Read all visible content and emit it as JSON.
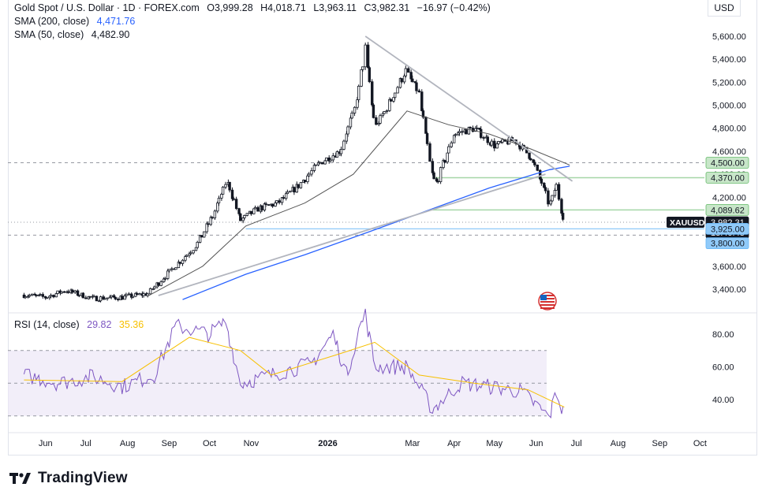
{
  "header": {
    "symbol_name": "Gold Spot / U.S. Dollar · 1D · FOREX.com",
    "open": "O3,999.28",
    "high": "H4,018.71",
    "low": "L3,963.11",
    "close": "C3,982.31",
    "change": "−16.97 (−0.42%)",
    "sma200_label": "SMA (200, close)",
    "sma200_value": "4,471.76",
    "sma50_label": "SMA (50, close)",
    "sma50_value": "4,482.90",
    "rsi_label": "RSI (14, close)",
    "rsi_value": "29.82",
    "rsi_ma_value": "35.36",
    "currency": "USD"
  },
  "brand": {
    "name": "TradingView",
    "icon": "tradingview-logo-icon"
  },
  "flag_icon": "us-flag-icon",
  "colors": {
    "up": "#131722",
    "down": "#131722",
    "sma200": "#2962ff",
    "sma50": "#131722",
    "rsi": "#7e57c2",
    "rsi_ma": "#f7c000",
    "trendline": "#b2b5be",
    "green_zone": "#43a047",
    "blue_zone": "#2962ff"
  },
  "chart_data": [
    {
      "type": "candlestick",
      "title": "Gold Spot / U.S. Dollar · 1D · FOREX.com",
      "x_ticks": [
        "Jun",
        "Jul",
        "Aug",
        "Sep",
        "Oct",
        "Nov",
        "2026",
        "Mar",
        "Apr",
        "May",
        "Jun",
        "Jul",
        "Aug",
        "Sep",
        "Oct"
      ],
      "y_ticks": [
        3400,
        3600,
        3800,
        4000,
        4200,
        4400,
        4600,
        4800,
        5000,
        5200,
        5400,
        5600
      ],
      "y_tick_labels": [
        "3,400.00",
        "3,600.00",
        "3,800.00",
        "4,000.00",
        "4,200.00",
        "4,400.00",
        "4,600.00",
        "4,800.00",
        "5,000.00",
        "5,200.00",
        "5,400.00",
        "5,600.00"
      ],
      "ylim": [
        3330,
        5680
      ],
      "approx_close_path": [
        {
          "x": "2025-05-20",
          "y": 3350
        },
        {
          "x": "2025-06-05",
          "y": 3330
        },
        {
          "x": "2025-06-20",
          "y": 3390
        },
        {
          "x": "2025-07-10",
          "y": 3320
        },
        {
          "x": "2025-08-01",
          "y": 3330
        },
        {
          "x": "2025-08-20",
          "y": 3360
        },
        {
          "x": "2025-09-05",
          "y": 3550
        },
        {
          "x": "2025-09-25",
          "y": 3780
        },
        {
          "x": "2025-10-08",
          "y": 4050
        },
        {
          "x": "2025-10-18",
          "y": 4350
        },
        {
          "x": "2025-10-28",
          "y": 4000
        },
        {
          "x": "2025-11-10",
          "y": 4100
        },
        {
          "x": "2025-11-25",
          "y": 4150
        },
        {
          "x": "2025-12-10",
          "y": 4300
        },
        {
          "x": "2025-12-26",
          "y": 4500
        },
        {
          "x": "2026-01-10",
          "y": 4600
        },
        {
          "x": "2026-01-22",
          "y": 5000
        },
        {
          "x": "2026-01-29",
          "y": 5500
        },
        {
          "x": "2026-02-05",
          "y": 4800
        },
        {
          "x": "2026-02-15",
          "y": 5000
        },
        {
          "x": "2026-02-28",
          "y": 5300
        },
        {
          "x": "2026-03-10",
          "y": 5100
        },
        {
          "x": "2026-03-18",
          "y": 4500
        },
        {
          "x": "2026-03-22",
          "y": 4300
        },
        {
          "x": "2026-04-05",
          "y": 4750
        },
        {
          "x": "2026-04-20",
          "y": 4800
        },
        {
          "x": "2026-05-05",
          "y": 4650
        },
        {
          "x": "2026-05-20",
          "y": 4700
        },
        {
          "x": "2026-06-01",
          "y": 4550
        },
        {
          "x": "2026-06-10",
          "y": 4300
        },
        {
          "x": "2026-06-15",
          "y": 4120
        },
        {
          "x": "2026-06-20",
          "y": 4300
        },
        {
          "x": "2026-06-26",
          "y": 3982
        }
      ],
      "sma200_path": [
        {
          "x": "2025-09-15",
          "y": 3310
        },
        {
          "x": "2025-11-01",
          "y": 3530
        },
        {
          "x": "2025-12-15",
          "y": 3700
        },
        {
          "x": "2026-02-01",
          "y": 3900
        },
        {
          "x": "2026-03-20",
          "y": 4100
        },
        {
          "x": "2026-05-01",
          "y": 4280
        },
        {
          "x": "2026-06-15",
          "y": 4440
        },
        {
          "x": "2026-06-30",
          "y": 4470
        }
      ],
      "sma50_path": [
        {
          "x": "2025-08-20",
          "y": 3340
        },
        {
          "x": "2025-09-30",
          "y": 3600
        },
        {
          "x": "2025-11-01",
          "y": 3950
        },
        {
          "x": "2025-12-15",
          "y": 4150
        },
        {
          "x": "2026-01-20",
          "y": 4400
        },
        {
          "x": "2026-03-01",
          "y": 4950
        },
        {
          "x": "2026-04-01",
          "y": 4830
        },
        {
          "x": "2026-05-01",
          "y": 4750
        },
        {
          "x": "2026-06-01",
          "y": 4620
        },
        {
          "x": "2026-06-30",
          "y": 4480
        }
      ],
      "price_labels": [
        {
          "text": "4,500.00",
          "value": 4500,
          "style": "green"
        },
        {
          "text": "4,370.00",
          "value": 4370,
          "style": "green"
        },
        {
          "text": "4,089.62",
          "value": 4089.62,
          "style": "green"
        },
        {
          "text": "3,982.31",
          "value": 3982.31,
          "style": "current"
        },
        {
          "text": "13:40:43",
          "value": 3982.31,
          "style": "timer"
        },
        {
          "text": "3,925.00",
          "value": 3925,
          "style": "blue"
        },
        {
          "text": "3,800.00",
          "value": 3800,
          "style": "blue"
        }
      ],
      "symbol_tag": "XAUUSD",
      "horizontal_levels": [
        4500,
        4370,
        4089.62,
        3925,
        3982.31
      ]
    },
    {
      "type": "line",
      "title": "RSI (14, close)",
      "y_ticks": [
        40,
        60,
        80
      ],
      "y_tick_labels": [
        "40.00",
        "60.00",
        "80.00"
      ],
      "ylim": [
        25,
        95
      ],
      "levels": [
        30,
        50,
        70
      ],
      "approx_rsi_path": [
        {
          "x": "2025-05-20",
          "y": 55
        },
        {
          "x": "2025-06-15",
          "y": 50
        },
        {
          "x": "2025-07-10",
          "y": 54
        },
        {
          "x": "2025-08-01",
          "y": 48
        },
        {
          "x": "2025-08-25",
          "y": 55
        },
        {
          "x": "2025-09-10",
          "y": 85
        },
        {
          "x": "2025-10-05",
          "y": 80
        },
        {
          "x": "2025-10-17",
          "y": 88
        },
        {
          "x": "2025-10-28",
          "y": 50
        },
        {
          "x": "2025-11-20",
          "y": 55
        },
        {
          "x": "2025-12-20",
          "y": 62
        },
        {
          "x": "2026-01-05",
          "y": 80
        },
        {
          "x": "2026-01-15",
          "y": 55
        },
        {
          "x": "2026-01-25",
          "y": 85
        },
        {
          "x": "2026-01-29",
          "y": 92
        },
        {
          "x": "2026-02-05",
          "y": 60
        },
        {
          "x": "2026-03-01",
          "y": 60
        },
        {
          "x": "2026-03-20",
          "y": 34
        },
        {
          "x": "2026-04-10",
          "y": 50
        },
        {
          "x": "2026-05-01",
          "y": 48
        },
        {
          "x": "2026-05-25",
          "y": 45
        },
        {
          "x": "2026-06-15",
          "y": 29
        },
        {
          "x": "2026-06-20",
          "y": 45
        },
        {
          "x": "2026-06-26",
          "y": 29.82
        }
      ],
      "approx_rsi_ma_path": [
        {
          "x": "2025-05-20",
          "y": 52
        },
        {
          "x": "2025-08-01",
          "y": 51
        },
        {
          "x": "2025-09-20",
          "y": 78
        },
        {
          "x": "2025-10-28",
          "y": 70
        },
        {
          "x": "2025-11-20",
          "y": 55
        },
        {
          "x": "2026-01-10",
          "y": 68
        },
        {
          "x": "2026-02-05",
          "y": 75
        },
        {
          "x": "2026-03-10",
          "y": 55
        },
        {
          "x": "2026-04-20",
          "y": 50
        },
        {
          "x": "2026-05-30",
          "y": 46
        },
        {
          "x": "2026-06-26",
          "y": 35.36
        }
      ]
    }
  ]
}
